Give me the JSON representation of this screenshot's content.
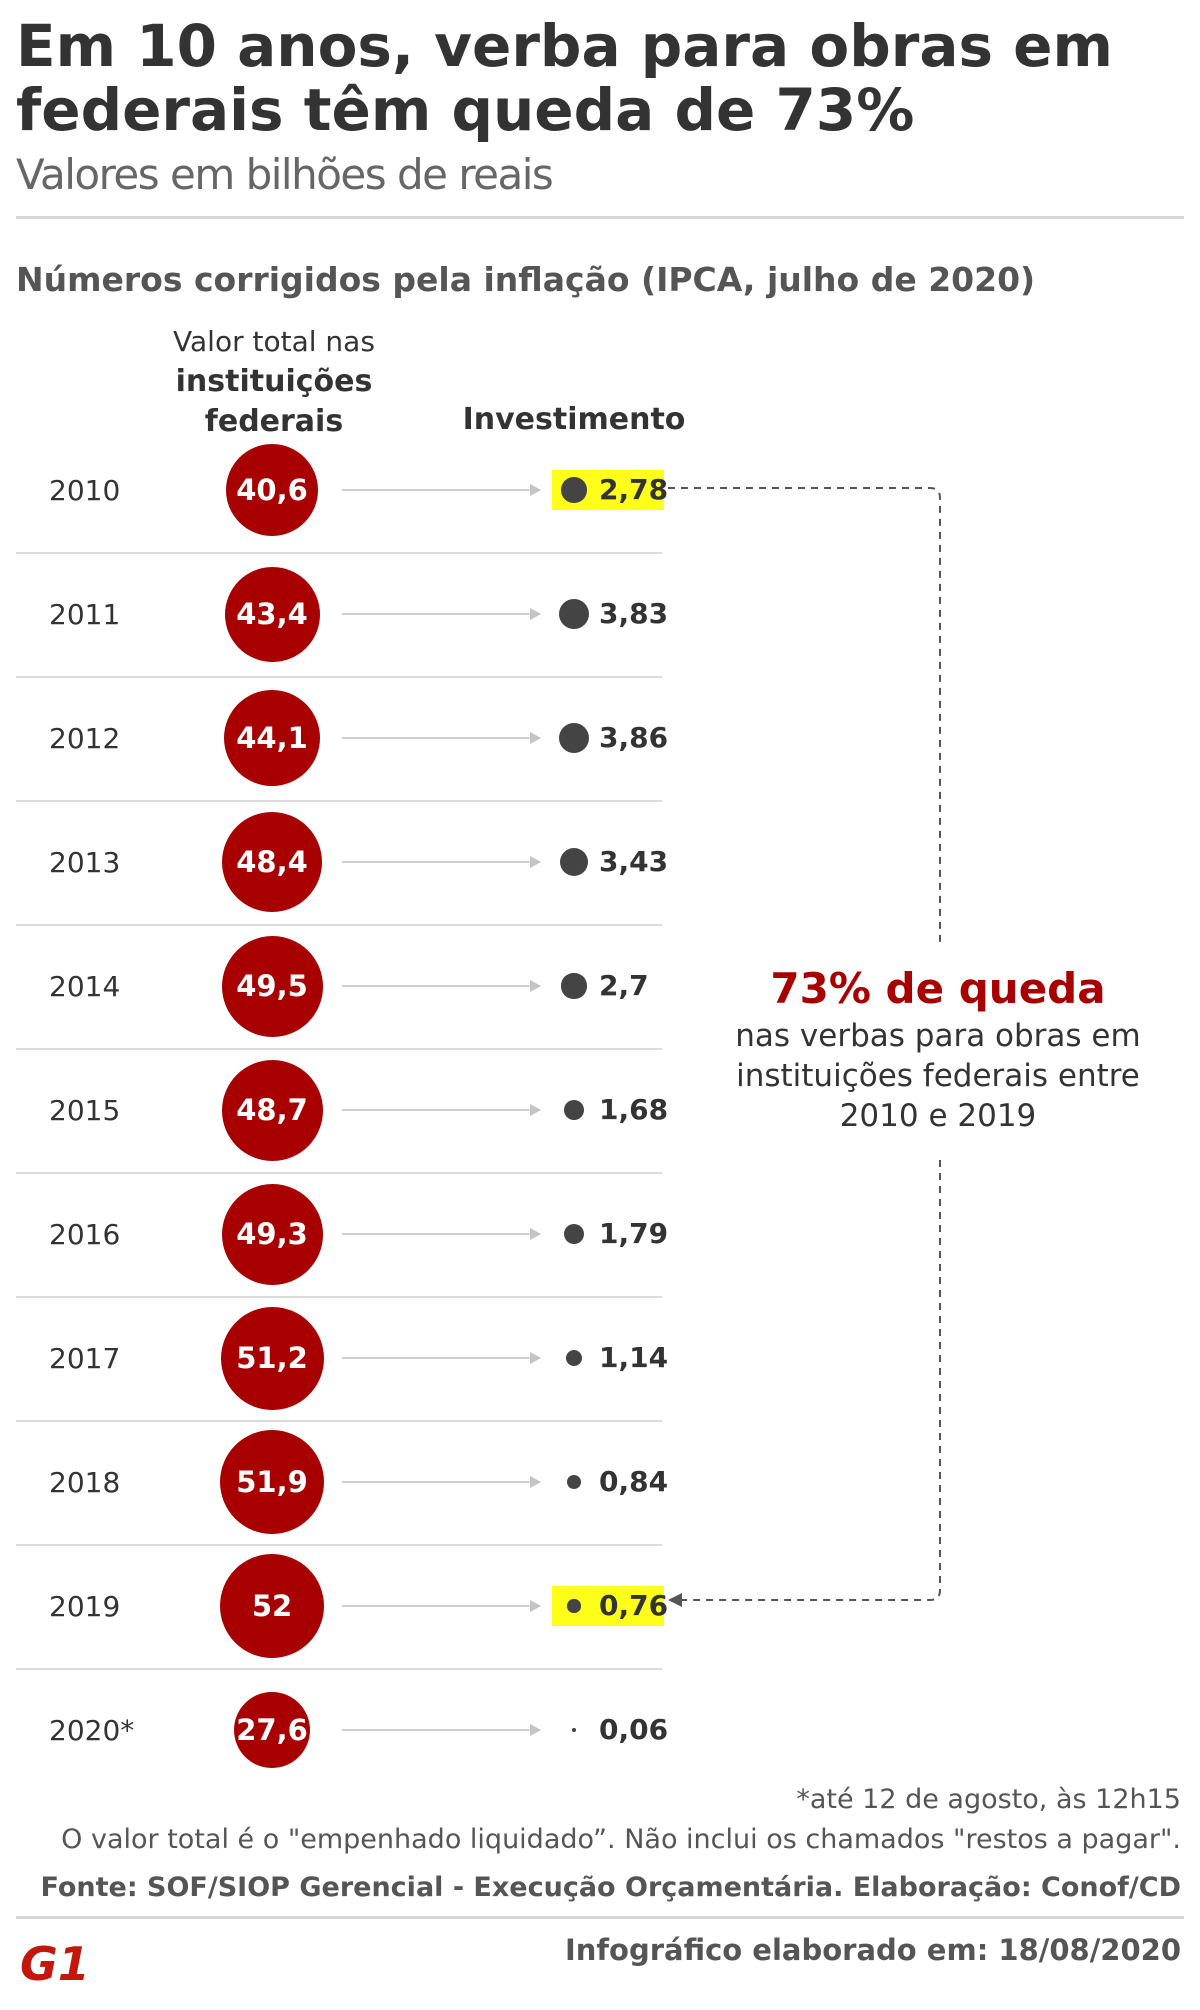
{
  "header": {
    "title": "Em 10 anos, verba para obras em federais têm queda de 73%",
    "subtitle": "Valores em bilhões de reais"
  },
  "section_heading": "Números corrigidos pela inflação (IPCA, julho de 2020)",
  "columns": {
    "total_line1": "Valor total nas",
    "total_line2": "instituições",
    "total_line3": "federais",
    "investment": "Investimento"
  },
  "chart_data": {
    "type": "table",
    "title": "Em 10 anos, verba para obras em federais têm queda de 73%",
    "subtitle": "Valores em bilhões de reais",
    "units": "bilhões de reais",
    "categories": [
      "2010",
      "2011",
      "2012",
      "2013",
      "2014",
      "2015",
      "2016",
      "2017",
      "2018",
      "2019",
      "2020*"
    ],
    "series": [
      {
        "name": "Valor total nas instituições federais",
        "values": [
          40.6,
          43.4,
          44.1,
          48.4,
          49.5,
          48.7,
          49.3,
          51.2,
          51.9,
          52,
          27.6
        ],
        "labels": [
          "40,6",
          "43,4",
          "44,1",
          "48,4",
          "49,5",
          "48,7",
          "49,3",
          "51,2",
          "51,9",
          "52",
          "27,6"
        ]
      },
      {
        "name": "Investimento",
        "values": [
          2.78,
          3.83,
          3.86,
          3.43,
          2.7,
          1.68,
          1.79,
          1.14,
          0.84,
          0.76,
          0.06
        ],
        "labels": [
          "2,78",
          "3,83",
          "3,86",
          "3,43",
          "2,7",
          "1,68",
          "1,79",
          "1,14",
          "0,84",
          "0,76",
          "0,06"
        ]
      }
    ],
    "highlighted": [
      "2010",
      "2019"
    ],
    "annotation": {
      "headline": "73% de queda",
      "text": "nas verbas para obras em instituições federais entre 2010 e 2019"
    }
  },
  "colors": {
    "accent": "#a80000",
    "highlight": "#ffff1a",
    "dot": "#444444"
  },
  "footer": {
    "note1": "*até 12 de agosto, às 12h15",
    "note2": "O valor total é o \"empenhado liquidado”. Não inclui os chamados \"restos a pagar\".",
    "source": "Fonte:  SOF/SIOP Gerencial - Execução Orçamentária. Elaboração: Conof/CD",
    "logo_text": "G1",
    "credit": "Infográfico elaborado em: 18/08/2020"
  }
}
